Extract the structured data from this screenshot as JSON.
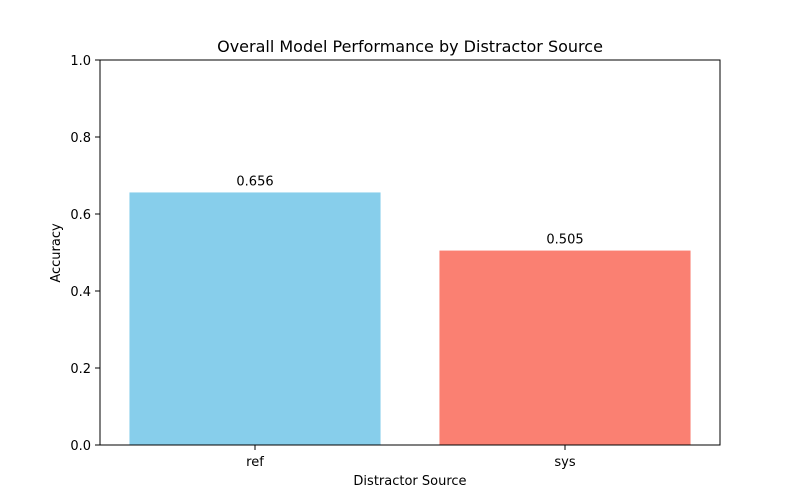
{
  "chart_data": {
    "type": "bar",
    "title": "Overall Model Performance by Distractor Source",
    "xlabel": "Distractor Source",
    "ylabel": "Accuracy",
    "categories": [
      "ref",
      "sys"
    ],
    "values": [
      0.656,
      0.505
    ],
    "value_labels": [
      "0.656",
      "0.505"
    ],
    "colors": [
      "#87ceeb",
      "#fa8072"
    ],
    "ylim": [
      0,
      1
    ],
    "yticks": [
      0.0,
      0.2,
      0.4,
      0.6,
      0.8,
      1.0
    ],
    "ytick_labels": [
      "0.0",
      "0.2",
      "0.4",
      "0.6",
      "0.8",
      "1.0"
    ],
    "grid": false,
    "legend": null
  }
}
